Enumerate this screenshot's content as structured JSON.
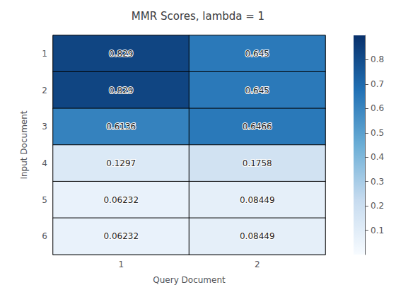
{
  "chart_data": {
    "type": "heatmap",
    "title": "MMR Scores, lambda = 1",
    "xlabel": "Query Document",
    "ylabel": "Input Document",
    "x_categories": [
      "1",
      "2"
    ],
    "y_categories": [
      "1",
      "2",
      "3",
      "4",
      "5",
      "6"
    ],
    "values": [
      [
        0.829,
        0.645
      ],
      [
        0.829,
        0.645
      ],
      [
        0.6136,
        0.6466
      ],
      [
        0.1297,
        0.1758
      ],
      [
        0.06232,
        0.08449
      ],
      [
        0.06232,
        0.08449
      ]
    ],
    "value_labels": [
      [
        "0.829",
        "0.645"
      ],
      [
        "0.829",
        "0.645"
      ],
      [
        "0.6136",
        "0.6466"
      ],
      [
        "0.1297",
        "0.1758"
      ],
      [
        "0.06232",
        "0.08449"
      ],
      [
        "0.06232",
        "0.08449"
      ]
    ],
    "colorbar_range": [
      0.0,
      0.9
    ],
    "colorbar_ticks": [
      0.1,
      0.2,
      0.3,
      0.4,
      0.5,
      0.6,
      0.7,
      0.8
    ],
    "data_labels": true
  }
}
